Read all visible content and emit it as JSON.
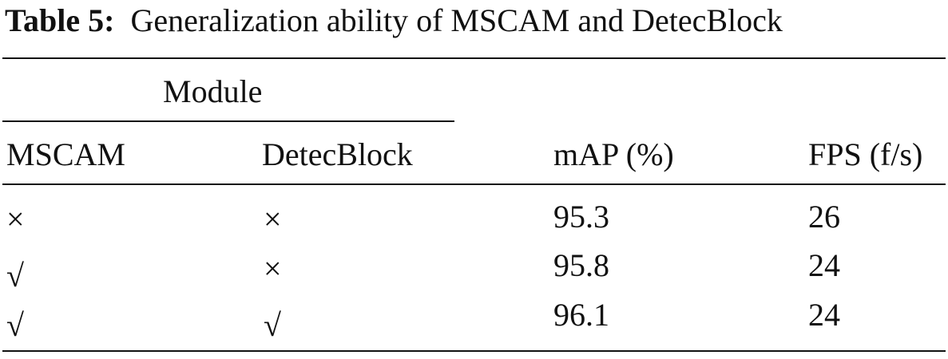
{
  "caption": {
    "label": "Table 5:",
    "text": "Generalization ability of MSCAM and DetecBlock"
  },
  "table": {
    "group_header": "Module",
    "columns": [
      "MSCAM",
      "DetecBlock",
      "mAP (%)",
      "FPS (f/s)"
    ],
    "rows": [
      [
        "×",
        "×",
        "95.3",
        "26"
      ],
      [
        "√",
        "×",
        "95.8",
        "24"
      ],
      [
        "√",
        "√",
        "96.1",
        "24"
      ]
    ]
  }
}
